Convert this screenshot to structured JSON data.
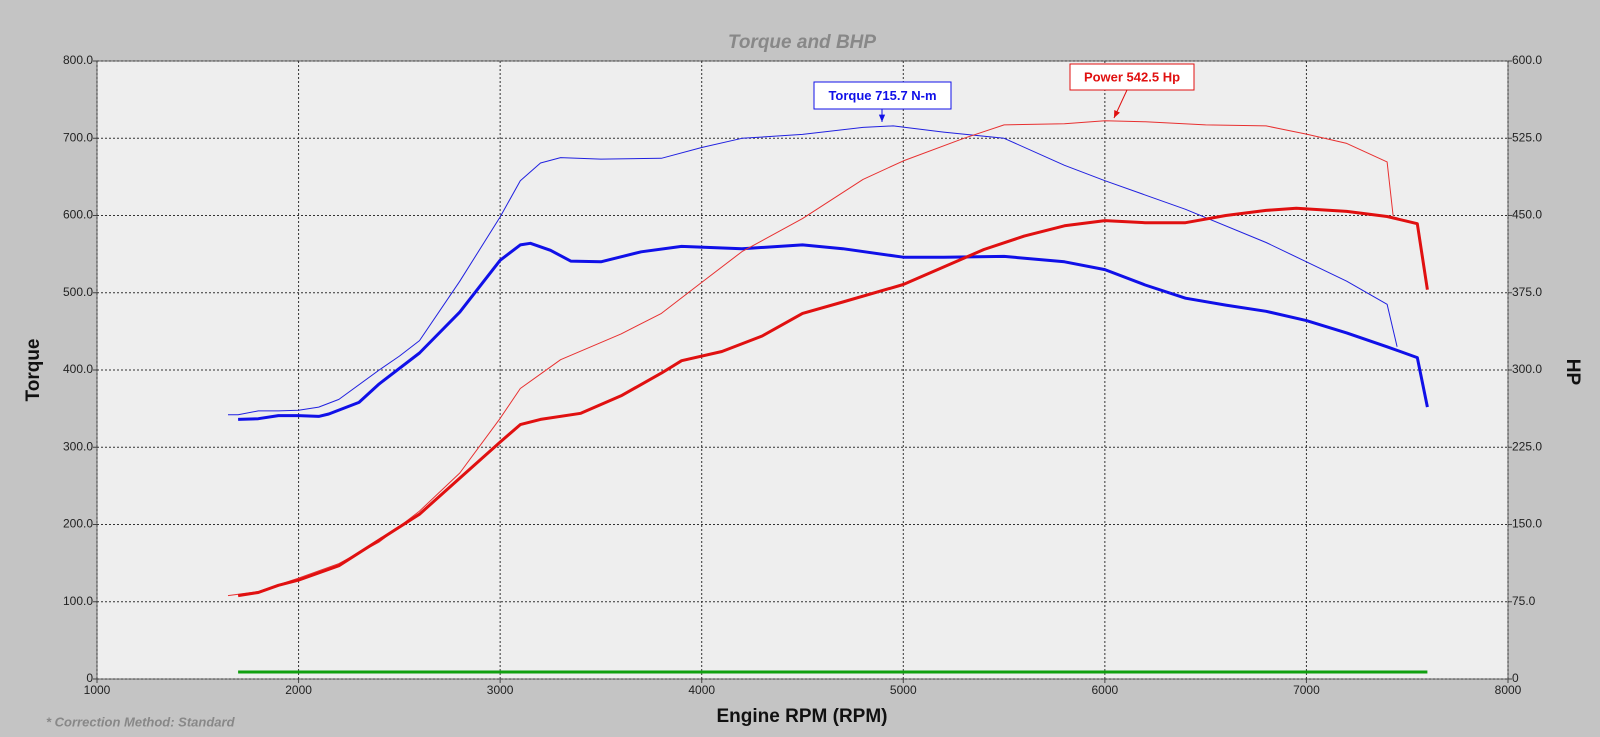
{
  "chart_data": {
    "type": "line",
    "title": "Torque and BHP",
    "xlabel": "Engine RPM (RPM)",
    "ylabel": "Torque",
    "y2label": "HP",
    "footnote": "* Correction Method: Standard",
    "xlim": [
      1000,
      8000
    ],
    "xticks": [
      1000,
      2000,
      3000,
      4000,
      5000,
      6000,
      7000,
      8000
    ],
    "ylim": [
      0,
      800
    ],
    "yticks": [
      0,
      {
        "value": 100,
        "label": "100.0"
      },
      {
        "value": 200,
        "label": "200.0"
      },
      {
        "value": 300,
        "label": "300.0"
      },
      {
        "value": 400,
        "label": "400.0"
      },
      {
        "value": 500,
        "label": "500.0"
      },
      {
        "value": 600,
        "label": "600.0"
      },
      {
        "value": 700,
        "label": "700.0"
      },
      {
        "value": 800,
        "label": "800.0"
      }
    ],
    "y2lim": [
      0,
      600
    ],
    "y2ticks": [
      0,
      {
        "value": 75,
        "label": "75.0"
      },
      {
        "value": 150,
        "label": "150.0"
      },
      {
        "value": 225,
        "label": "225.0"
      },
      {
        "value": 300,
        "label": "300.0"
      },
      {
        "value": 375,
        "label": "375.0"
      },
      {
        "value": 450,
        "label": "450.0"
      },
      {
        "value": 525,
        "label": "525.0"
      },
      {
        "value": 600,
        "label": "600.0"
      }
    ],
    "grid": true,
    "series": [
      {
        "color": "#2020e0",
        "width": 1,
        "axis": "y",
        "x": [
          1650,
          1700,
          1800,
          1900,
          2000,
          2100,
          2200,
          2400,
          2500,
          2600,
          2800,
          3000,
          3100,
          3200,
          3300,
          3500,
          3800,
          4000,
          4200,
          4500,
          4800,
          4950,
          5200,
          5500,
          5800,
          6000,
          6400,
          6800,
          7000,
          7200,
          7400,
          7450
        ],
        "values": [
          342,
          342,
          347,
          347,
          348,
          352,
          362,
          400,
          418,
          438,
          515,
          598,
          645,
          668,
          675,
          673,
          674,
          688,
          700,
          705,
          714,
          716,
          708,
          700,
          665,
          645,
          608,
          565,
          540,
          515,
          485,
          430
        ]
      },
      {
        "color": "#1010e8",
        "width": 3,
        "axis": "y",
        "x": [
          1700,
          1800,
          1900,
          2000,
          2100,
          2150,
          2300,
          2400,
          2600,
          2800,
          3000,
          3100,
          3150,
          3250,
          3350,
          3500,
          3700,
          3900,
          4200,
          4500,
          4700,
          5000,
          5200,
          5500,
          5800,
          6000,
          6200,
          6400,
          6600,
          6800,
          7000,
          7200,
          7400,
          7550,
          7600
        ],
        "values": [
          336,
          337,
          341,
          341,
          340,
          343,
          358,
          382,
          422,
          475,
          542,
          562,
          564,
          555,
          541,
          540,
          553,
          560,
          557,
          562,
          557,
          546,
          546,
          547,
          540,
          530,
          510,
          493,
          484,
          476,
          464,
          448,
          430,
          416,
          352
        ]
      },
      {
        "color": "#e83030",
        "width": 1,
        "axis": "y2",
        "x": [
          1650,
          1800,
          2000,
          2200,
          2400,
          2600,
          2800,
          3000,
          3100,
          3300,
          3600,
          3800,
          4000,
          4200,
          4500,
          4800,
          5000,
          5300,
          5500,
          5800,
          6000,
          6200,
          6500,
          6800,
          7000,
          7200,
          7400,
          7430
        ],
        "values": [
          81,
          85,
          98,
          112,
          133,
          163,
          200,
          253,
          282,
          310,
          335,
          355,
          385,
          415,
          447,
          485,
          503,
          525,
          538,
          539,
          542,
          541,
          538,
          537,
          529,
          520,
          502,
          450
        ]
      },
      {
        "color": "#e01010",
        "width": 3,
        "axis": "y2",
        "x": [
          1700,
          1800,
          1900,
          2000,
          2200,
          2400,
          2600,
          2800,
          3000,
          3100,
          3200,
          3400,
          3600,
          3800,
          3900,
          4100,
          4300,
          4500,
          4700,
          5000,
          5200,
          5400,
          5600,
          5800,
          6000,
          6200,
          6400,
          6600,
          6800,
          6950,
          7200,
          7400,
          7550,
          7600
        ],
        "values": [
          81,
          84,
          91,
          96,
          110,
          135,
          160,
          195,
          230,
          247,
          252,
          258,
          275,
          297,
          309,
          318,
          333,
          355,
          366,
          383,
          400,
          417,
          430,
          440,
          445,
          443,
          443,
          450,
          455,
          457,
          454,
          449,
          442,
          378
        ]
      },
      {
        "color": "#10a010",
        "width": 3,
        "axis": "y",
        "x": [
          1700,
          7600
        ],
        "values": [
          9,
          9
        ]
      }
    ],
    "annotations": [
      {
        "text": "Torque 715.7 N-m",
        "color": "#1010e8"
      },
      {
        "text": "Power 542.5 Hp",
        "color": "#e01010"
      }
    ]
  }
}
